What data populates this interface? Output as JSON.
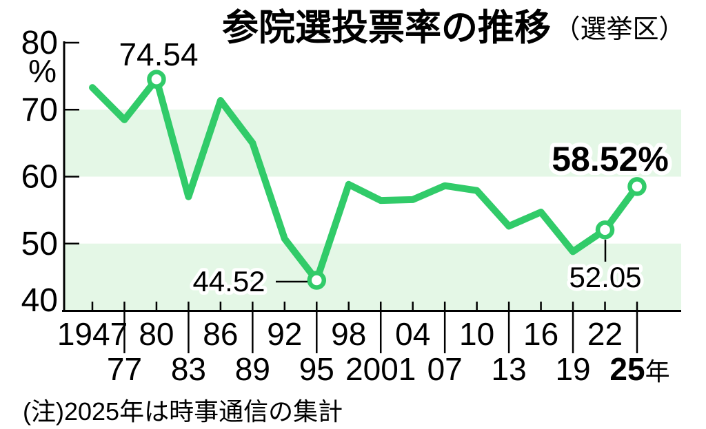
{
  "header": {
    "title": "参院選投票率の推移",
    "title_suffix": "（選挙区）"
  },
  "footnote": "(注)2025年は時事通信の集計",
  "chart_data": {
    "type": "line",
    "title": "参院選投票率の推移（選挙区）",
    "unit": "%",
    "year_suffix": "年",
    "categories": [
      "1947",
      "77",
      "80",
      "83",
      "86",
      "89",
      "92",
      "95",
      "98",
      "2001",
      "04",
      "07",
      "10",
      "13",
      "16",
      "19",
      "22",
      "25"
    ],
    "values": [
      73.3,
      68.49,
      74.54,
      57.0,
      71.36,
      65.02,
      50.72,
      44.52,
      58.84,
      56.44,
      56.57,
      58.64,
      57.92,
      52.61,
      54.7,
      48.8,
      52.05,
      58.52
    ],
    "ylim": [
      40,
      80
    ],
    "yticks": [
      80,
      70,
      60,
      50,
      40
    ],
    "shaded_bands": [
      [
        60,
        70
      ],
      [
        40,
        50
      ]
    ],
    "marker_indices": [
      2,
      7,
      16,
      17
    ],
    "annotations": [
      {
        "text": "74.54",
        "point_index": 2
      },
      {
        "text": "44.52",
        "point_index": 7
      },
      {
        "text": "52.05",
        "point_index": 16
      },
      {
        "text": "58.52%",
        "point_index": 17
      }
    ],
    "note": "(注)2025年は時事通信の集計",
    "grid": false,
    "legend": false,
    "colors": {
      "line": "#31cb69",
      "band": "#e4f7e6",
      "text": "#000000",
      "background": "#ffffff"
    }
  }
}
